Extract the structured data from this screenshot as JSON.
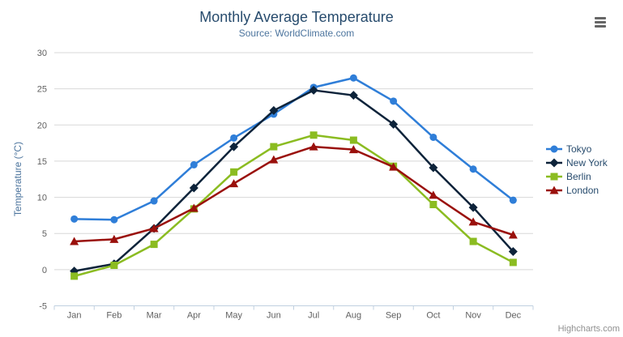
{
  "chart_data": {
    "type": "line",
    "title": "Monthly Average Temperature",
    "subtitle": "Source: WorldClimate.com",
    "xlabel": "",
    "ylabel": "Temperature (°C)",
    "ylim": [
      -5,
      30
    ],
    "yticks": [
      -5,
      0,
      5,
      10,
      15,
      20,
      25,
      30
    ],
    "categories": [
      "Jan",
      "Feb",
      "Mar",
      "Apr",
      "May",
      "Jun",
      "Jul",
      "Aug",
      "Sep",
      "Oct",
      "Nov",
      "Dec"
    ],
    "series": [
      {
        "name": "Tokyo",
        "color": "#2f7ed8",
        "symbol": "circle",
        "values": [
          7.0,
          6.9,
          9.5,
          14.5,
          18.2,
          21.5,
          25.2,
          26.5,
          23.3,
          18.3,
          13.9,
          9.6
        ]
      },
      {
        "name": "New York",
        "color": "#0d233a",
        "symbol": "diamond",
        "values": [
          -0.2,
          0.8,
          5.7,
          11.3,
          17.0,
          22.0,
          24.8,
          24.1,
          20.1,
          14.1,
          8.6,
          2.5
        ]
      },
      {
        "name": "Berlin",
        "color": "#8bbc21",
        "symbol": "square",
        "values": [
          -0.9,
          0.6,
          3.5,
          8.4,
          13.5,
          17.0,
          18.6,
          17.9,
          14.3,
          9.0,
          3.9,
          1.0
        ]
      },
      {
        "name": "London",
        "color": "#9a100c",
        "symbol": "triangle",
        "values": [
          3.9,
          4.2,
          5.7,
          8.5,
          11.9,
          15.2,
          17.0,
          16.6,
          14.2,
          10.3,
          6.6,
          4.8
        ]
      }
    ],
    "legend_position": "right",
    "grid": true,
    "credits": "Highcharts.com"
  },
  "colors": {
    "title": "#274b6d",
    "subtitle": "#4d759e",
    "axis_title": "#4d759e",
    "tick_label": "#606060",
    "gridline": "#d8d8d8",
    "axis_line": "#c0d0e0",
    "credits": "#909090",
    "menu_icon": "#666666"
  },
  "icons": {
    "context_menu": "hamburger-icon"
  }
}
